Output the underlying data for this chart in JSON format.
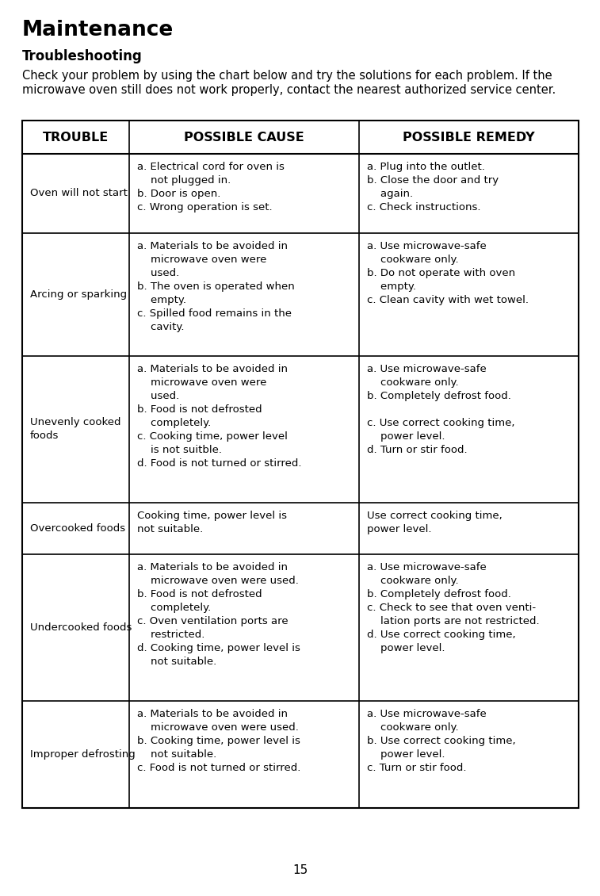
{
  "title_main": "Maintenance",
  "title_sub": "Troubleshooting",
  "intro_line1": "Check your problem by using the chart below and try the solutions for each problem. If the",
  "intro_line2": "microwave oven still does not work properly, contact the nearest authorized service center.",
  "header": [
    "TROUBLE",
    "POSSIBLE CAUSE",
    "POSSIBLE REMEDY"
  ],
  "rows": [
    {
      "trouble": "Oven will not start",
      "cause": "a. Electrical cord for oven is\n    not plugged in.\nb. Door is open.\nc. Wrong operation is set.",
      "remedy": "a. Plug into the outlet.\nb. Close the door and try\n    again.\nc. Check instructions."
    },
    {
      "trouble": "Arcing or sparking",
      "cause": "a. Materials to be avoided in\n    microwave oven were\n    used.\nb. The oven is operated when\n    empty.\nc. Spilled food remains in the\n    cavity.",
      "remedy": "a. Use microwave-safe\n    cookware only.\nb. Do not operate with oven\n    empty.\nc. Clean cavity with wet towel."
    },
    {
      "trouble": "Unevenly cooked\nfoods",
      "cause": "a. Materials to be avoided in\n    microwave oven were\n    used.\nb. Food is not defrosted\n    completely.\nc. Cooking time, power level\n    is not suitble.\nd. Food is not turned or stirred.",
      "remedy": "a. Use microwave-safe\n    cookware only.\nb. Completely defrost food.\n\nc. Use correct cooking time,\n    power level.\nd. Turn or stir food."
    },
    {
      "trouble": "Overcooked foods",
      "cause": "Cooking time, power level is\nnot suitable.",
      "remedy": "Use correct cooking time,\npower level."
    },
    {
      "trouble": "Undercooked foods",
      "cause": "a. Materials to be avoided in\n    microwave oven were used.\nb. Food is not defrosted\n    completely.\nc. Oven ventilation ports are\n    restricted.\nd. Cooking time, power level is\n    not suitable.",
      "remedy": "a. Use microwave-safe\n    cookware only.\nb. Completely defrost food.\nc. Check to see that oven venti-\n    lation ports are not restricted.\nd. Use correct cooking time,\n    power level."
    },
    {
      "trouble": "Improper defrosting",
      "cause": "a. Materials to be avoided in\n    microwave oven were used.\nb. Cooking time, power level is\n    not suitable.\nc. Food is not turned or stirred.",
      "remedy": "a. Use microwave-safe\n    cookware only.\nb. Use correct cooking time,\n    power level.\nc. Turn or stir food."
    }
  ],
  "page_number": "15",
  "bg_color": "#ffffff",
  "border_color": "#000000",
  "text_color": "#000000"
}
